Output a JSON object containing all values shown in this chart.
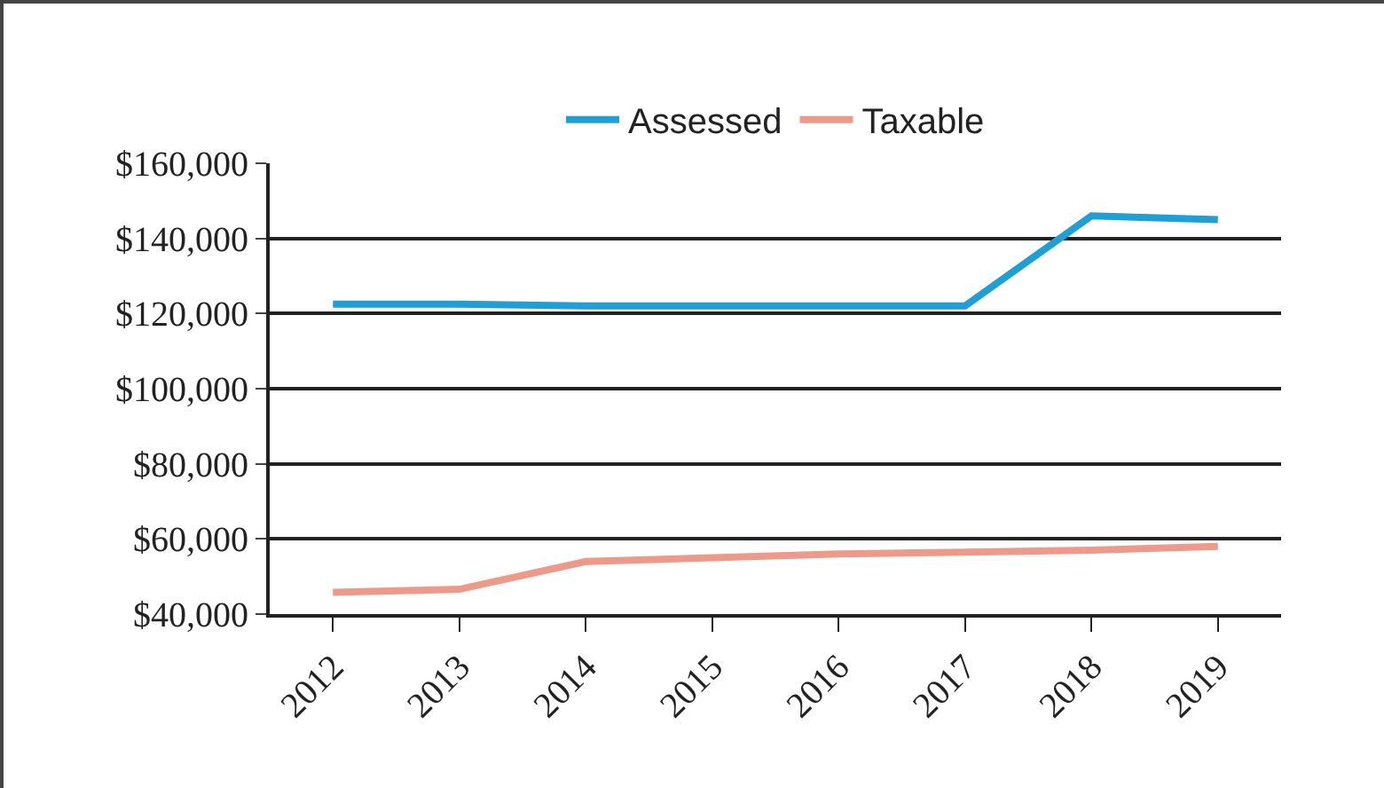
{
  "chart_data": {
    "type": "line",
    "categories": [
      "2012",
      "2013",
      "2014",
      "2015",
      "2016",
      "2017",
      "2018",
      "2019"
    ],
    "series": [
      {
        "name": "Assessed",
        "color": "#1f9fd6",
        "values": [
          122500,
          122500,
          122000,
          122000,
          122000,
          122000,
          146000,
          145000
        ]
      },
      {
        "name": "Taxable",
        "color": "#ee9a8a",
        "values": [
          45800,
          46600,
          54000,
          55000,
          56000,
          56500,
          57000,
          58000
        ]
      }
    ],
    "ylim": [
      40000,
      160000
    ],
    "yticks": [
      {
        "value": 40000,
        "label": "$40,000"
      },
      {
        "value": 60000,
        "label": "$60,000"
      },
      {
        "value": 80000,
        "label": "$80,000"
      },
      {
        "value": 100000,
        "label": "$100,000"
      },
      {
        "value": 120000,
        "label": "$120,000"
      },
      {
        "value": 140000,
        "label": "$140,000"
      },
      {
        "value": 160000,
        "label": "$160,000"
      }
    ],
    "grid": "y",
    "legend": "top",
    "marker": "none",
    "line_style": "solid"
  }
}
